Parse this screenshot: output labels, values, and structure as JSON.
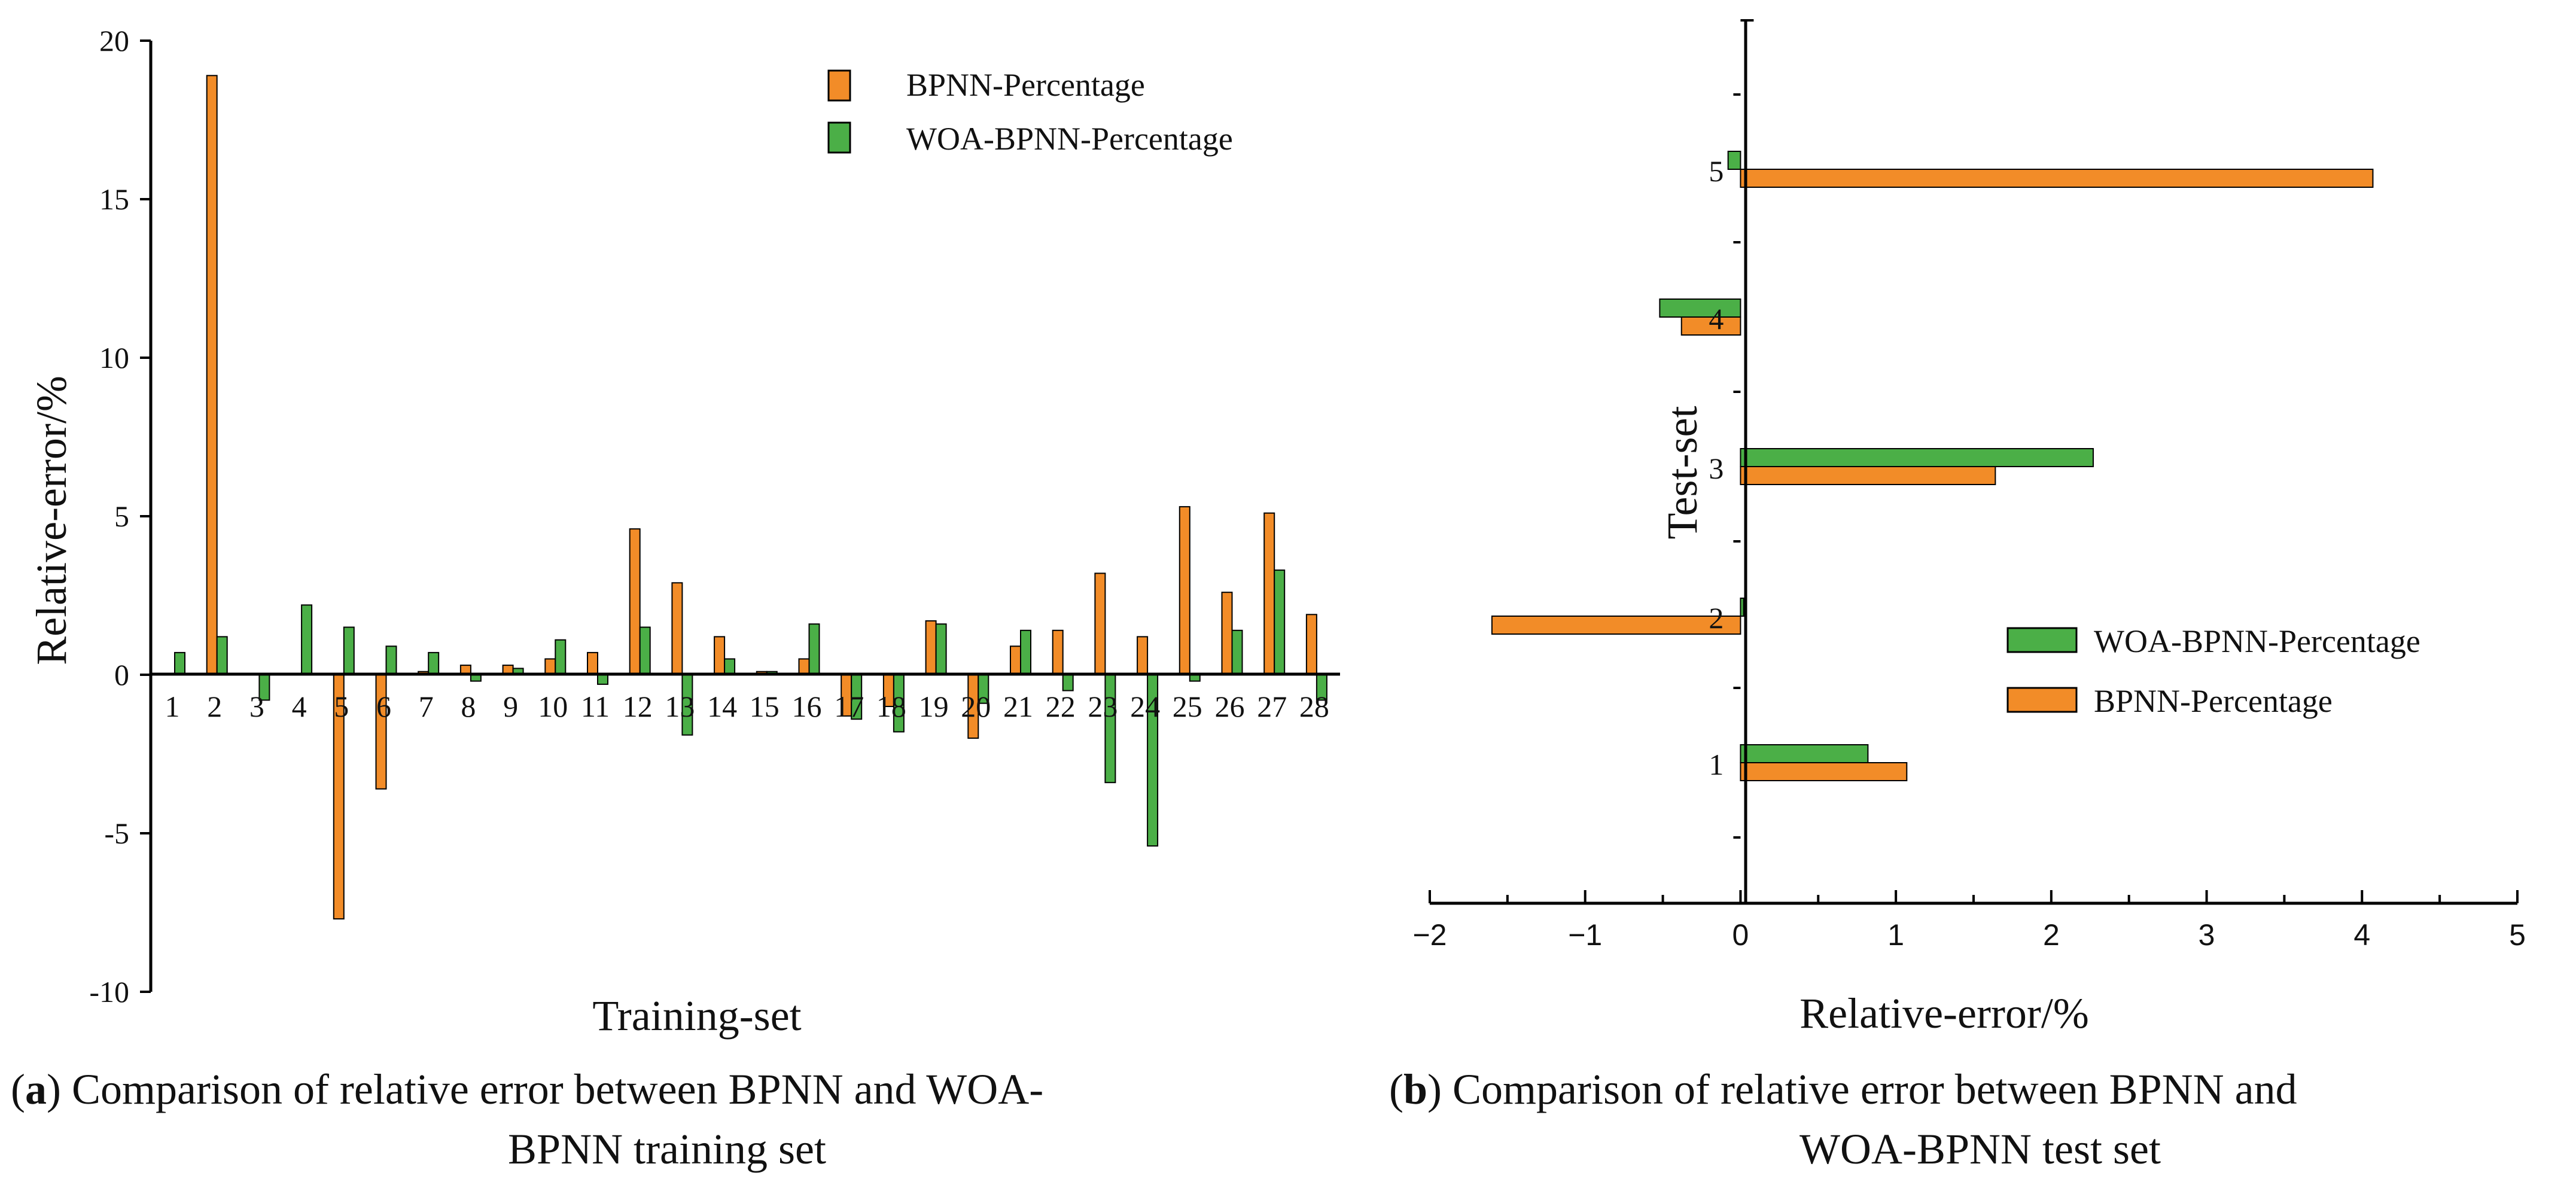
{
  "chart_data": [
    {
      "id": "a",
      "type": "bar",
      "orientation": "vertical",
      "categories": [
        "1",
        "2",
        "3",
        "4",
        "5",
        "6",
        "7",
        "8",
        "9",
        "10",
        "11",
        "12",
        "13",
        "14",
        "15",
        "16",
        "17",
        "18",
        "19",
        "20",
        "21",
        "22",
        "23",
        "24",
        "25",
        "26",
        "27",
        "28"
      ],
      "series": [
        {
          "name": "BPNN-Percentage",
          "color": "#F28C28",
          "values": [
            0.0,
            18.9,
            0.0,
            0.0,
            -7.7,
            -3.6,
            0.1,
            0.3,
            0.3,
            0.5,
            0.7,
            4.6,
            2.9,
            1.2,
            0.1,
            0.5,
            -1.3,
            -1.0,
            1.7,
            -2.0,
            0.9,
            1.4,
            3.2,
            1.2,
            5.3,
            2.6,
            5.1,
            1.9
          ]
        },
        {
          "name": "WOA-BPNN-Percentage",
          "color": "#4BAF47",
          "values": [
            0.7,
            1.2,
            -0.8,
            2.2,
            1.5,
            0.9,
            0.7,
            -0.2,
            0.2,
            1.1,
            -0.3,
            1.5,
            -1.9,
            0.5,
            0.1,
            1.6,
            -1.4,
            -1.8,
            1.6,
            -0.9,
            1.4,
            -0.5,
            -3.4,
            -5.4,
            -0.2,
            1.4,
            3.3,
            -0.8
          ]
        }
      ],
      "ylim": [
        -10,
        20
      ],
      "yticks": [
        "20",
        "15",
        "10",
        "5",
        "0",
        "-5",
        "-10"
      ],
      "xlabel": "Training-set",
      "ylabel": "Relative-error/%",
      "legend_position": "top-right",
      "caption_letter": "a",
      "caption_line1": ") Comparison of relative error between BPNN and WOA-",
      "caption_line2": "BPNN training set"
    },
    {
      "id": "b",
      "type": "bar",
      "orientation": "horizontal",
      "categories": [
        "1",
        "2",
        "3",
        "4",
        "5"
      ],
      "series": [
        {
          "name": "WOA-BPNN-Percentage",
          "color": "#4BAF47",
          "values": [
            0.82,
            0.02,
            2.27,
            -0.52,
            -0.08
          ]
        },
        {
          "name": "BPNN-Percentage",
          "color": "#F28C28",
          "values": [
            1.07,
            -1.6,
            1.64,
            -0.38,
            4.07
          ]
        }
      ],
      "xlim": [
        -2,
        5
      ],
      "xticks": [
        "−2",
        "−1",
        "0",
        "1",
        "2",
        "3",
        "4",
        "5"
      ],
      "xlabel": "Relative-error/%",
      "ylabel": "Test-set",
      "legend_position": "bottom-right",
      "caption_letter": "b",
      "caption_line1": ") Comparison of relative error between BPNN and",
      "caption_line2": "WOA-BPNN test set"
    }
  ]
}
